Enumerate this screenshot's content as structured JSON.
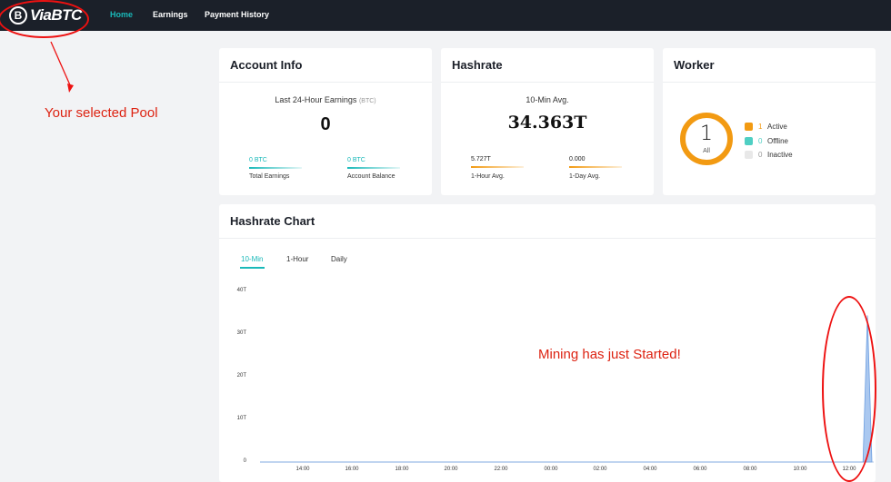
{
  "header": {
    "logo_text": "ViaBTC",
    "logo_glyph": "B",
    "nav": [
      {
        "label": "Home",
        "active": true
      },
      {
        "label": "Earnings",
        "active": false
      },
      {
        "label": "Payment History",
        "active": false
      }
    ]
  },
  "annotations": {
    "pool_note": "Your selected Pool",
    "mining_note": "Mining has just Started!",
    "color": "#e11111"
  },
  "account_info": {
    "title": "Account Info",
    "earnings_label": "Last 24-Hour Earnings",
    "earnings_unit": "(BTC)",
    "earnings_value": "0",
    "total_earnings": {
      "value": "0 BTC",
      "label": "Total Earnings"
    },
    "account_balance": {
      "value": "0 BTC",
      "label": "Account Balance"
    }
  },
  "hashrate": {
    "title": "Hashrate",
    "avg_label": "10-Min Avg.",
    "avg_value": "34.363T",
    "hour": {
      "value": "5.727T",
      "label": "1-Hour Avg."
    },
    "day": {
      "value": "0.000",
      "label": "1-Day Avg."
    }
  },
  "worker": {
    "title": "Worker",
    "total": "1",
    "total_label": "All",
    "legend": [
      {
        "count": "1",
        "label": "Active",
        "color": "#f29a12"
      },
      {
        "count": "0",
        "label": "Offline",
        "color": "#4fcfc3"
      },
      {
        "count": "0",
        "label": "Inactive",
        "color": "#e8e8e8"
      }
    ]
  },
  "hashrate_chart": {
    "title": "Hashrate Chart",
    "tabs": [
      {
        "label": "10-Min",
        "active": true
      },
      {
        "label": "1-Hour",
        "active": false
      },
      {
        "label": "Daily",
        "active": false
      }
    ],
    "y_ticks": [
      "40T",
      "30T",
      "20T",
      "10T",
      "0"
    ],
    "x_ticks": [
      "14:00",
      "16:00",
      "18:00",
      "20:00",
      "22:00",
      "00:00",
      "02:00",
      "04:00",
      "06:00",
      "08:00",
      "10:00",
      "12:00"
    ]
  },
  "chart_data": {
    "type": "area",
    "ylim": [
      0,
      40
    ],
    "y_unit": "T",
    "x_ticks": [
      "14:00",
      "16:00",
      "18:00",
      "20:00",
      "22:00",
      "00:00",
      "02:00",
      "04:00",
      "06:00",
      "08:00",
      "10:00",
      "12:00"
    ],
    "series": [
      {
        "color": "#aac8f0",
        "points": [
          {
            "x": "13:00",
            "y": 0
          },
          {
            "x": "11:40",
            "y": 0
          },
          {
            "x": "11:50",
            "y": 34.363
          },
          {
            "x": "12:00",
            "y": 0
          }
        ]
      }
    ]
  }
}
